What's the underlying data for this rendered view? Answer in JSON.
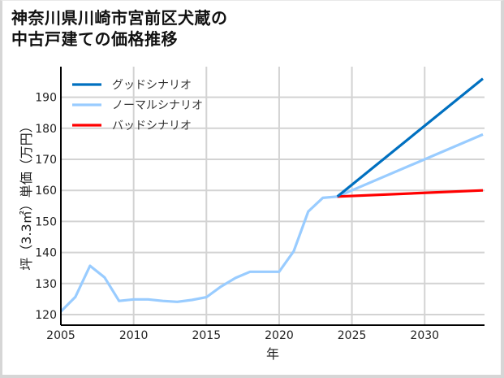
{
  "title_line1": "神奈川県川崎市宮前区犬蔵の",
  "title_line2": "中古戸建ての価格推移",
  "chart_data": {
    "type": "line",
    "title": "神奈川県川崎市宮前区犬蔵の中古戸建ての価格推移",
    "xlabel": "年",
    "ylabel": "坪（3.3㎡）単価（万円）",
    "xlim": [
      2005,
      2034
    ],
    "ylim": [
      117,
      199
    ],
    "xticks": [
      2005,
      2010,
      2015,
      2020,
      2025,
      2030
    ],
    "yticks": [
      120,
      130,
      140,
      150,
      160,
      170,
      180,
      190
    ],
    "grid": true,
    "legend_position": "upper left",
    "series": [
      {
        "name": "グッドシナリオ",
        "color": "#0070C0",
        "x": [
          2024,
          2034
        ],
        "values": [
          158,
          196
        ]
      },
      {
        "name": "ノーマルシナリオ",
        "color": "#99CCFF",
        "x": [
          2005,
          2006,
          2007,
          2008,
          2009,
          2010,
          2011,
          2012,
          2013,
          2014,
          2015,
          2016,
          2017,
          2018,
          2019,
          2020,
          2021,
          2022,
          2023,
          2024,
          2034
        ],
        "values": [
          121,
          125.7,
          135.7,
          132,
          124.4,
          124.9,
          124.9,
          124.4,
          124.1,
          124.7,
          125.6,
          129,
          131.8,
          133.8,
          133.8,
          133.8,
          140.4,
          153.2,
          157.6,
          158,
          178
        ]
      },
      {
        "name": "バッドシナリオ",
        "color": "#FF0000",
        "x": [
          2024,
          2034
        ],
        "values": [
          158,
          160
        ]
      }
    ]
  }
}
